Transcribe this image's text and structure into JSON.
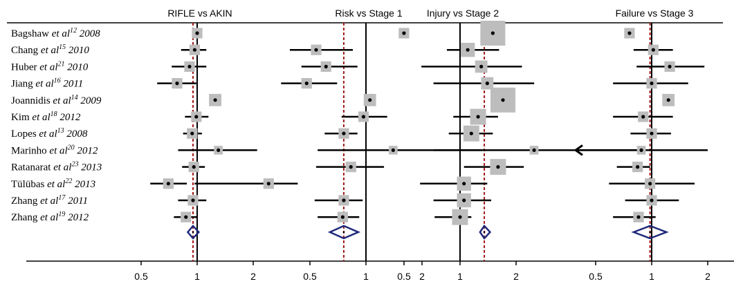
{
  "chart_data": {
    "type": "forest",
    "scale": "log",
    "studies": [
      {
        "author": "Bagshaw",
        "etal": "et al",
        "ref": "12",
        "year": "2008"
      },
      {
        "author": "Chang",
        "etal": "et al",
        "ref": "15",
        "year": "2010"
      },
      {
        "author": "Huber",
        "etal": "et al",
        "ref": "21",
        "year": "2010"
      },
      {
        "author": "Jiang",
        "etal": "et al",
        "ref": "16",
        "year": "2011"
      },
      {
        "author": "Joannidis",
        "etal": "et al",
        "ref": "14",
        "year": "2009"
      },
      {
        "author": "Kim",
        "etal": "et al",
        "ref": "18",
        "year": "2012"
      },
      {
        "author": "Lopes",
        "etal": "et al",
        "ref": "13",
        "year": "2008"
      },
      {
        "author": "Marinho",
        "etal": "et al",
        "ref": "20",
        "year": "2012"
      },
      {
        "author": "Ratanarat",
        "etal": "et al",
        "ref": "23",
        "year": "2013"
      },
      {
        "author": "Tülübas",
        "etal": "et al",
        "ref": "22",
        "year": "2013"
      },
      {
        "author": "Zhang",
        "etal": "et al",
        "ref": "17",
        "year": "2011"
      },
      {
        "author": "Zhang",
        "etal": "et al",
        "ref": "19",
        "year": "2012"
      }
    ],
    "panels": [
      {
        "title": "RIFLE vs AKIN",
        "ticks": [
          0.5,
          1,
          2
        ],
        "tick_labels": [
          "0.5",
          "1",
          "2"
        ],
        "pooled": {
          "est": 0.95,
          "lo": 0.89,
          "hi": 1.02
        },
        "rows": [
          {
            "est": 1.0,
            "lo": 0.99,
            "hi": 1.01,
            "w": 0.2
          },
          {
            "est": 0.97,
            "lo": 0.82,
            "hi": 1.12,
            "w": 0.2
          },
          {
            "est": 0.91,
            "lo": 0.73,
            "hi": 1.12,
            "w": 0.2
          },
          {
            "est": 0.78,
            "lo": 0.61,
            "hi": 0.99,
            "w": 0.2
          },
          {
            "est": 1.25,
            "lo": 1.22,
            "hi": 1.28,
            "w": 0.3
          },
          {
            "est": 0.99,
            "lo": 0.86,
            "hi": 1.15,
            "w": 0.2
          },
          {
            "est": 0.94,
            "lo": 0.84,
            "hi": 1.06,
            "w": 0.2
          },
          {
            "est": 1.3,
            "lo": 0.79,
            "hi": 2.1,
            "w": 0.1
          },
          {
            "est": 0.96,
            "lo": 0.83,
            "hi": 1.1,
            "w": 0.2
          },
          {
            "est": 0.7,
            "lo": 0.56,
            "hi": 0.88,
            "w": 0.2
          },
          {
            "est": 0.95,
            "lo": 0.79,
            "hi": 1.12,
            "w": 0.2
          },
          {
            "est": 0.87,
            "lo": 0.75,
            "hi": 1.0,
            "w": 0.2
          }
        ],
        "dashed_at": 0.95
      },
      {
        "title": "Risk vs Stage 1",
        "ticks": [
          0.5,
          1,
          2
        ],
        "tick_labels": [
          "0.5",
          "1",
          "2"
        ],
        "pooled": {
          "est": 0.76,
          "lo": 0.64,
          "hi": 0.91
        },
        "rows": [
          {
            "est": 1.6,
            "lo": 1.58,
            "hi": 1.62,
            "w": 0.2
          },
          {
            "est": 0.54,
            "lo": 0.39,
            "hi": 0.85,
            "w": 0.2
          },
          {
            "est": 0.61,
            "lo": 0.45,
            "hi": 0.9,
            "w": 0.2
          },
          {
            "est": 0.48,
            "lo": 0.35,
            "hi": 0.7,
            "w": 0.2
          },
          {
            "est": 1.05,
            "lo": 1.0,
            "hi": 1.1,
            "w": 0.3
          },
          {
            "est": 0.97,
            "lo": 0.74,
            "hi": 1.3,
            "w": 0.2
          },
          {
            "est": 0.76,
            "lo": 0.6,
            "hi": 0.9,
            "w": 0.2
          },
          {
            "est": 1.4,
            "lo": 0.55,
            "hi": 4.2,
            "w": 0.1
          },
          {
            "est": 0.83,
            "lo": 0.54,
            "hi": 1.25,
            "w": 0.2
          },
          {
            "est": 0.3,
            "lo": 0.12,
            "hi": 0.43,
            "w": 0.2
          },
          {
            "est": 0.76,
            "lo": 0.53,
            "hi": 0.96,
            "w": 0.2
          },
          {
            "est": 0.75,
            "lo": 0.55,
            "hi": 0.92,
            "w": 0.2
          }
        ],
        "dashed_at": 0.76
      },
      {
        "title": "Injury vs Stage 2",
        "ticks": [
          0.5,
          1,
          2
        ],
        "tick_labels": [
          "0.5",
          "1",
          "2"
        ],
        "pooled": {
          "est": 1.35,
          "lo": 1.28,
          "hi": 1.45
        },
        "rows": [
          {
            "est": 1.5,
            "lo": 1.49,
            "hi": 1.51,
            "w": 1.0
          },
          {
            "est": 1.1,
            "lo": 0.85,
            "hi": 1.62,
            "w": 0.4
          },
          {
            "est": 1.3,
            "lo": 0.62,
            "hi": 2.15,
            "w": 0.3
          },
          {
            "est": 1.4,
            "lo": 0.72,
            "hi": 2.5,
            "w": 0.3
          },
          {
            "est": 1.7,
            "lo": 1.65,
            "hi": 1.75,
            "w": 1.0
          },
          {
            "est": 1.25,
            "lo": 0.92,
            "hi": 1.6,
            "w": 0.5
          },
          {
            "est": 1.15,
            "lo": 0.87,
            "hi": 1.5,
            "w": 0.5
          },
          {
            "est": 2.5,
            "lo": 0.72,
            "hi": 9.0,
            "w": 0.1
          },
          {
            "est": 1.6,
            "lo": 1.05,
            "hi": 2.2,
            "w": 0.5
          },
          {
            "est": 1.05,
            "lo": 0.61,
            "hi": 1.4,
            "w": 0.4
          },
          {
            "est": 1.05,
            "lo": 0.72,
            "hi": 1.47,
            "w": 0.4
          },
          {
            "est": 1.0,
            "lo": 0.73,
            "hi": 1.15,
            "w": 0.5
          }
        ],
        "dashed_at": 1.35
      },
      {
        "title": "Failure vs Stage 3",
        "ticks": [
          0.5,
          1,
          2
        ],
        "tick_labels": [
          "0.5",
          "1",
          "2"
        ],
        "pooled": {
          "est": 0.98,
          "lo": 0.8,
          "hi": 1.2
        },
        "rows": [
          {
            "est": 0.76,
            "lo": 0.75,
            "hi": 0.77,
            "w": 0.2
          },
          {
            "est": 1.02,
            "lo": 0.8,
            "hi": 1.3,
            "w": 0.2
          },
          {
            "est": 1.25,
            "lo": 0.83,
            "hi": 1.92,
            "w": 0.2
          },
          {
            "est": 1.0,
            "lo": 0.62,
            "hi": 1.57,
            "w": 0.2
          },
          {
            "est": 1.23,
            "lo": 1.2,
            "hi": 1.26,
            "w": 0.3
          },
          {
            "est": 0.9,
            "lo": 0.62,
            "hi": 1.3,
            "w": 0.2
          },
          {
            "est": 1.0,
            "lo": 0.77,
            "hi": 1.27,
            "w": 0.2
          },
          {
            "est": 0.88,
            "lo": 0.23,
            "hi": 2.0,
            "w": 0.1,
            "arrow_left": true
          },
          {
            "est": 0.84,
            "lo": 0.65,
            "hi": 0.98,
            "w": 0.2
          },
          {
            "est": 0.98,
            "lo": 0.59,
            "hi": 1.7,
            "w": 0.2
          },
          {
            "est": 1.0,
            "lo": 0.72,
            "hi": 1.4,
            "w": 0.2
          },
          {
            "est": 0.85,
            "lo": 0.62,
            "hi": 1.05,
            "w": 0.2
          }
        ],
        "dashed_at": 0.98
      }
    ],
    "colors": {
      "ci_line": "#000000",
      "weight_box": "#bdbdbd",
      "point": "#000000",
      "diamond": "#1f2a7a",
      "dashed_line": "#a01818",
      "axis": "#000000"
    }
  }
}
